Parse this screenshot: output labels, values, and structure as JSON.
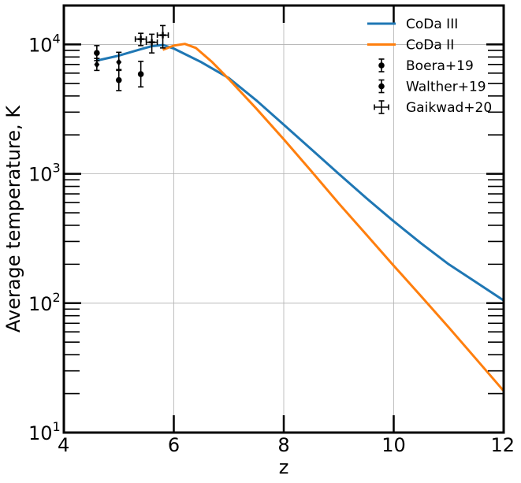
{
  "chart_data": {
    "type": "line",
    "title": "",
    "xlabel": "z",
    "ylabel": "Average temperature, K",
    "xlim": [
      4,
      12
    ],
    "ylim": [
      10,
      20000
    ],
    "yscale": "log",
    "grid": true,
    "legend_position": "top-right",
    "x_ticks": [
      {
        "value": 4,
        "label": "4"
      },
      {
        "value": 6,
        "label": "6"
      },
      {
        "value": 8,
        "label": "8"
      },
      {
        "value": 10,
        "label": "10"
      },
      {
        "value": 12,
        "label": "12"
      }
    ],
    "y_ticks": [
      {
        "value": 10,
        "base": "10",
        "exp": "1"
      },
      {
        "value": 100,
        "base": "10",
        "exp": "2"
      },
      {
        "value": 1000,
        "base": "10",
        "exp": "3"
      },
      {
        "value": 10000,
        "base": "10",
        "exp": "4"
      }
    ],
    "series": [
      {
        "name": "CoDa III",
        "kind": "line",
        "color": "#1f77b4",
        "x": [
          4.6,
          5.0,
          5.4,
          5.6,
          5.8,
          6.0,
          6.5,
          7.0,
          7.5,
          8.0,
          8.5,
          9.0,
          9.5,
          10.0,
          10.5,
          11.0,
          11.5,
          12.0
        ],
        "y": [
          7500,
          8200,
          9200,
          9700,
          9900,
          9300,
          7300,
          5500,
          3700,
          2400,
          1550,
          1000,
          650,
          430,
          290,
          200,
          145,
          105
        ]
      },
      {
        "name": "CoDa II",
        "kind": "line",
        "color": "#ff7f0e",
        "x": [
          5.8,
          6.0,
          6.2,
          6.4,
          6.7,
          7.0,
          7.5,
          8.0,
          8.5,
          9.0,
          9.5,
          10.0,
          10.5,
          11.0,
          11.5,
          12.0
        ],
        "y": [
          9100,
          9800,
          10100,
          9400,
          7300,
          5400,
          3200,
          1850,
          1050,
          590,
          340,
          195,
          113,
          65,
          37,
          21
        ]
      },
      {
        "name": "Boera+19",
        "kind": "errorbar",
        "marker": "diamond",
        "color": "#000000",
        "x": [
          4.6,
          5.0
        ],
        "y": [
          7000,
          7300
        ],
        "yerr_low": [
          6300,
          6300
        ],
        "yerr_high": [
          7800,
          8700
        ]
      },
      {
        "name": "Walther+19",
        "kind": "errorbar",
        "marker": "circle",
        "color": "#000000",
        "x": [
          4.6,
          5.0,
          5.4
        ],
        "y": [
          8600,
          5300,
          5900
        ],
        "yerr_low": [
          7500,
          4400,
          4700
        ],
        "yerr_high": [
          9800,
          6400,
          7400
        ]
      },
      {
        "name": "Gaikwad+20",
        "kind": "errorbar",
        "marker": "plus",
        "color": "#000000",
        "x": [
          5.4,
          5.6,
          5.8
        ],
        "y": [
          11000,
          10400,
          11800
        ],
        "xerr_low": [
          5.3,
          5.5,
          5.7
        ],
        "xerr_high": [
          5.5,
          5.7,
          5.9
        ],
        "yerr_low": [
          9800,
          8600,
          9400
        ],
        "yerr_high": [
          12200,
          12000,
          14000
        ]
      }
    ]
  }
}
